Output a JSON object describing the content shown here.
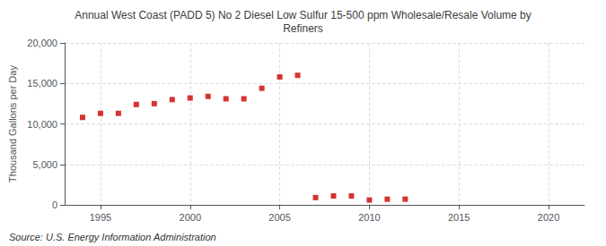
{
  "chart_data": {
    "type": "scatter",
    "title": "Annual West Coast (PADD 5) No 2 Diesel Low Sulfur 15-500 ppm Wholesale/Resale Volume by\nRefiners",
    "ylabel": "Thousand Gallons per Day",
    "annotations": [
      "Source: U.S. Energy Information Administration"
    ],
    "x": [
      1994,
      1995,
      1996,
      1997,
      1998,
      1999,
      2000,
      2001,
      2002,
      2003,
      2004,
      2005,
      2006,
      2007,
      2008,
      2009,
      2010,
      2011,
      2012
    ],
    "values": [
      10800,
      11300,
      11300,
      12400,
      12500,
      13000,
      13200,
      13400,
      13100,
      13100,
      14400,
      15800,
      16000,
      900,
      1100,
      1100,
      600,
      700,
      700
    ],
    "color": "#cc0000",
    "marker": "square",
    "xlim": [
      1993,
      2022
    ],
    "xticks": [
      1995,
      2000,
      2005,
      2010,
      2015,
      2020
    ],
    "ylim": [
      0,
      20000
    ],
    "yticks": [
      0,
      {
        "value": 5000,
        "label": "5,000"
      },
      {
        "value": 10000,
        "label": "10,000"
      },
      {
        "value": 15000,
        "label": "15,000"
      },
      {
        "value": 20000,
        "label": "20,000"
      }
    ],
    "grid": true
  }
}
